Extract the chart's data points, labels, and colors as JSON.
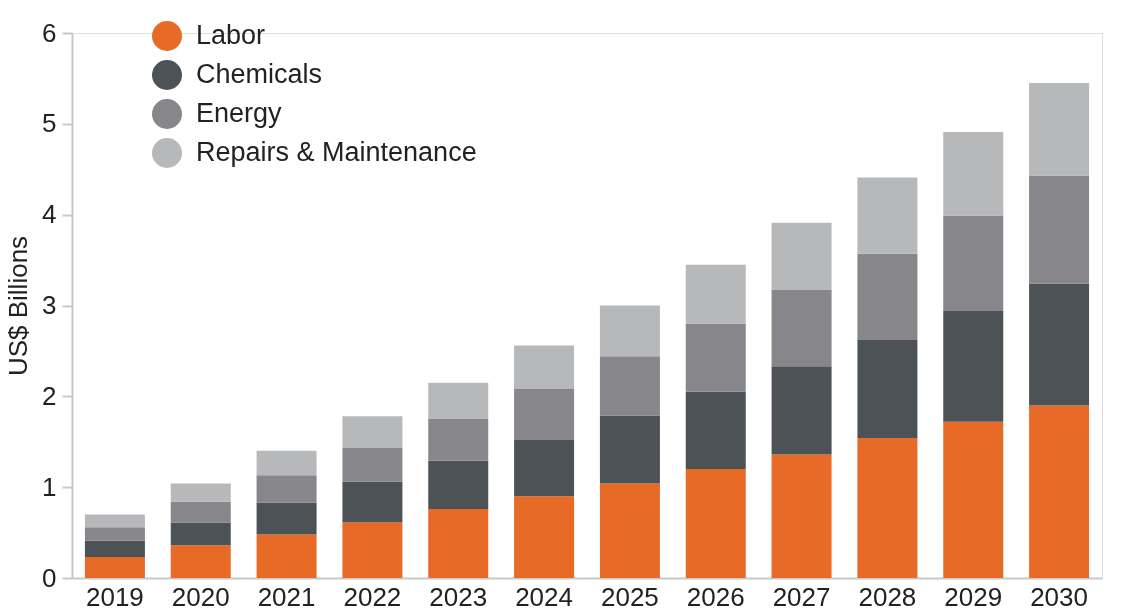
{
  "chart_data": {
    "type": "bar",
    "stacked": true,
    "ylabel": "US$ Billions",
    "categories": [
      "2019",
      "2020",
      "2021",
      "2022",
      "2023",
      "2024",
      "2025",
      "2026",
      "2027",
      "2028",
      "2029",
      "2030"
    ],
    "series": [
      {
        "name": "Labor",
        "color": "#e86a27",
        "values": [
          0.23,
          0.36,
          0.48,
          0.61,
          0.76,
          0.9,
          1.04,
          1.2,
          1.36,
          1.54,
          1.72,
          1.9
        ]
      },
      {
        "name": "Chemicals",
        "color": "#4d5257",
        "values": [
          0.18,
          0.25,
          0.35,
          0.45,
          0.53,
          0.62,
          0.75,
          0.85,
          0.97,
          1.08,
          1.22,
          1.34
        ]
      },
      {
        "name": "Energy",
        "color": "#86868b",
        "values": [
          0.15,
          0.23,
          0.3,
          0.37,
          0.46,
          0.56,
          0.65,
          0.75,
          0.84,
          0.95,
          1.05,
          1.19
        ]
      },
      {
        "name": "Repairs & Maintenance",
        "color": "#b7b8ba",
        "values": [
          0.14,
          0.2,
          0.27,
          0.35,
          0.4,
          0.48,
          0.56,
          0.65,
          0.74,
          0.84,
          0.92,
          1.02
        ]
      }
    ],
    "ylim": [
      0,
      6
    ],
    "yticks": [
      0,
      1,
      2,
      3,
      4,
      5,
      6
    ],
    "grid": false,
    "legend": "top left"
  }
}
